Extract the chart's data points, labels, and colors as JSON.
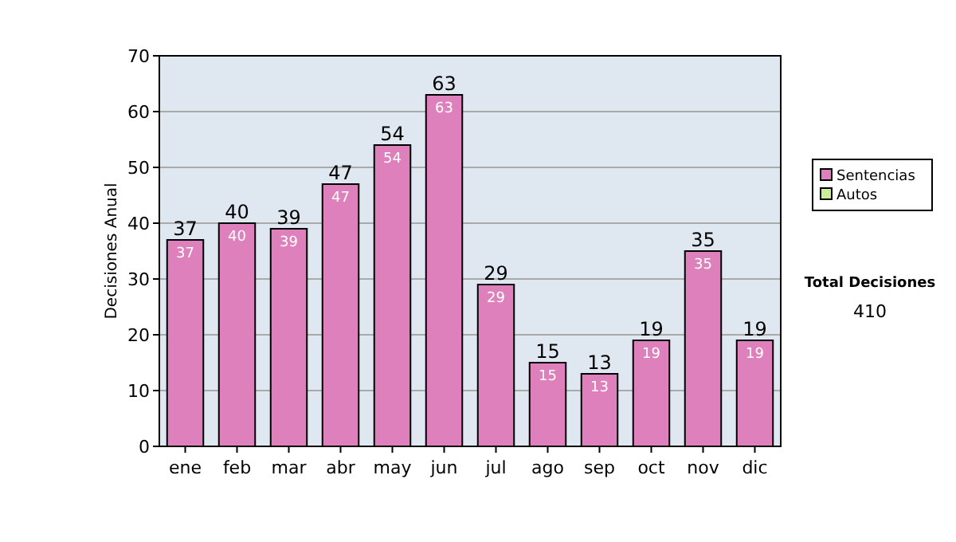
{
  "chart_data": {
    "type": "bar",
    "stacked": true,
    "ylabel": "Decisiones Anual",
    "categories": [
      "ene",
      "feb",
      "mar",
      "abr",
      "may",
      "jun",
      "jul",
      "ago",
      "sep",
      "oct",
      "nov",
      "dic"
    ],
    "series": [
      {
        "name": "Sentencias",
        "color": "#dd80bb",
        "values": [
          37,
          40,
          39,
          47,
          54,
          63,
          29,
          15,
          13,
          19,
          35,
          19
        ],
        "value_labels": [
          "37",
          "40",
          "39",
          "47",
          "54",
          "63",
          "29",
          "15",
          "13",
          "19",
          "35",
          "19"
        ]
      },
      {
        "name": "Autos",
        "color": "#ccee99",
        "values": [
          0,
          0,
          0,
          0,
          0,
          0,
          0,
          0,
          0,
          0,
          0,
          0
        ]
      }
    ],
    "totals": [
      "37",
      "40",
      "39",
      "47",
      "54",
      "63",
      "29",
      "15",
      "13",
      "19",
      "35",
      "19"
    ],
    "ylim": [
      0,
      70
    ],
    "yticks": [
      0,
      10,
      20,
      30,
      40,
      50,
      60,
      70
    ],
    "grid": "y",
    "legend": "right",
    "annotations": [
      "Total Decisiones",
      "410"
    ]
  }
}
